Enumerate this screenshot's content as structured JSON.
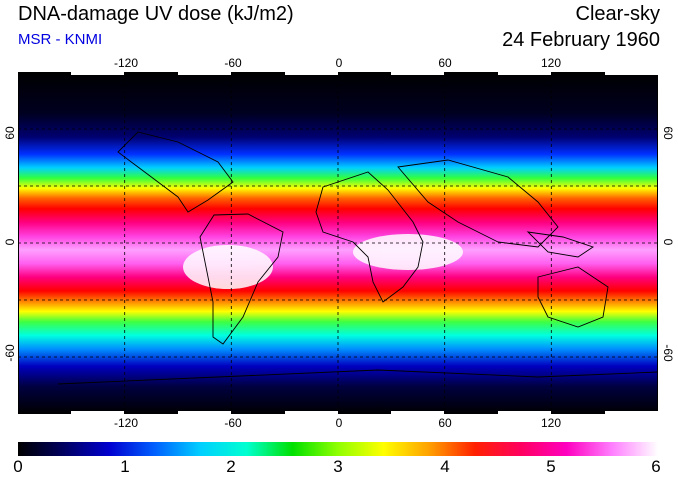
{
  "header": {
    "title": "DNA-damage UV dose (kJ/m2)",
    "subtitle": "MSR - KNMI",
    "condition": "Clear-sky",
    "date": "24 February 1960"
  },
  "map": {
    "projection": "equirectangular",
    "lon_range": [
      -180,
      180
    ],
    "lat_range": [
      -90,
      90
    ],
    "grid": true,
    "grid_lon": [
      -120,
      -60,
      0,
      60,
      120
    ],
    "grid_lat": [
      -60,
      -30,
      0,
      30,
      60
    ],
    "lon_tick_labels": [
      "-120",
      "-60",
      "0",
      "60",
      "120"
    ],
    "lat_tick_labels": [
      "60",
      "0",
      "-60"
    ],
    "coastlines": true
  },
  "colorbar": {
    "min": 0,
    "max": 6,
    "tick_labels": [
      "0",
      "1",
      "2",
      "3",
      "4",
      "5",
      "6"
    ],
    "colors": [
      "#000000",
      "#000060",
      "#0000d0",
      "#0060ff",
      "#00d0ff",
      "#00ffd0",
      "#00e000",
      "#90ff00",
      "#ffff00",
      "#ffa000",
      "#ff2000",
      "#ff0060",
      "#ff00c0",
      "#ff80ff",
      "#ffffff"
    ]
  }
}
